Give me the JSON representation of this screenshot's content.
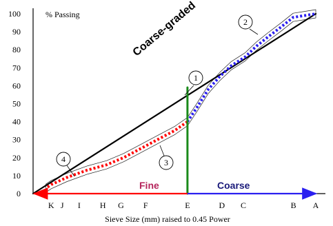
{
  "chart_data": {
    "type": "line",
    "title": "",
    "ylabel": "% Passing",
    "xlabel": "Sieve Size (mm) raised to 0.45 Power",
    "ylim": [
      0,
      100
    ],
    "xlim": [
      0,
      1
    ],
    "yticks": [
      0,
      10,
      20,
      30,
      40,
      50,
      60,
      70,
      80,
      90,
      100
    ],
    "xticks": [
      {
        "label": "K",
        "x": 0.064
      },
      {
        "label": "J",
        "x": 0.103
      },
      {
        "label": "I",
        "x": 0.163
      },
      {
        "label": "H",
        "x": 0.247
      },
      {
        "label": "G",
        "x": 0.311
      },
      {
        "label": "F",
        "x": 0.398
      },
      {
        "label": "E",
        "x": 0.546
      },
      {
        "label": "D",
        "x": 0.668
      },
      {
        "label": "C",
        "x": 0.744
      },
      {
        "label": "B",
        "x": 0.921
      },
      {
        "label": "A",
        "x": 1.0
      }
    ],
    "annotation": "Coarse-graded",
    "region_labels": {
      "fine": "Fine",
      "coarse": "Coarse"
    },
    "callouts": [
      "1",
      "2",
      "3",
      "4"
    ],
    "series": [
      {
        "key": "max_density",
        "color": "#000000",
        "style": "solid",
        "points": [
          [
            0,
            0
          ],
          [
            1,
            100
          ]
        ]
      },
      {
        "key": "coarse_gradation",
        "color": "#2a1ff0",
        "style": "dotted",
        "points": [
          [
            0.546,
            40
          ],
          [
            0.58,
            48
          ],
          [
            0.62,
            58
          ],
          [
            0.66,
            65
          ],
          [
            0.7,
            71
          ],
          [
            0.75,
            76
          ],
          [
            0.79,
            82
          ],
          [
            0.83,
            87
          ],
          [
            0.88,
            93
          ],
          [
            0.92,
            98
          ],
          [
            0.96,
            99
          ],
          [
            1.0,
            100
          ]
        ]
      },
      {
        "key": "fine_gradation",
        "color": "#ff0000",
        "style": "dotted",
        "points": [
          [
            0.546,
            40
          ],
          [
            0.5,
            35
          ],
          [
            0.44,
            30
          ],
          [
            0.38,
            25
          ],
          [
            0.32,
            20
          ],
          [
            0.26,
            16
          ],
          [
            0.19,
            13
          ],
          [
            0.12,
            9
          ],
          [
            0.064,
            5
          ],
          [
            0.045,
            3
          ]
        ]
      },
      {
        "key": "fine_coarse_divider",
        "color": "#1a8a1a",
        "style": "solid",
        "points": [
          [
            0.546,
            0
          ],
          [
            0.546,
            59
          ]
        ]
      }
    ],
    "arrows": [
      {
        "key": "fine_arrow",
        "color": "#ff0000",
        "from": [
          0.546,
          0
        ],
        "to": [
          0.004,
          0
        ]
      },
      {
        "key": "coarse_arrow",
        "color": "#2a1ff0",
        "from": [
          0.546,
          0
        ],
        "to": [
          1.0,
          0
        ]
      }
    ]
  }
}
